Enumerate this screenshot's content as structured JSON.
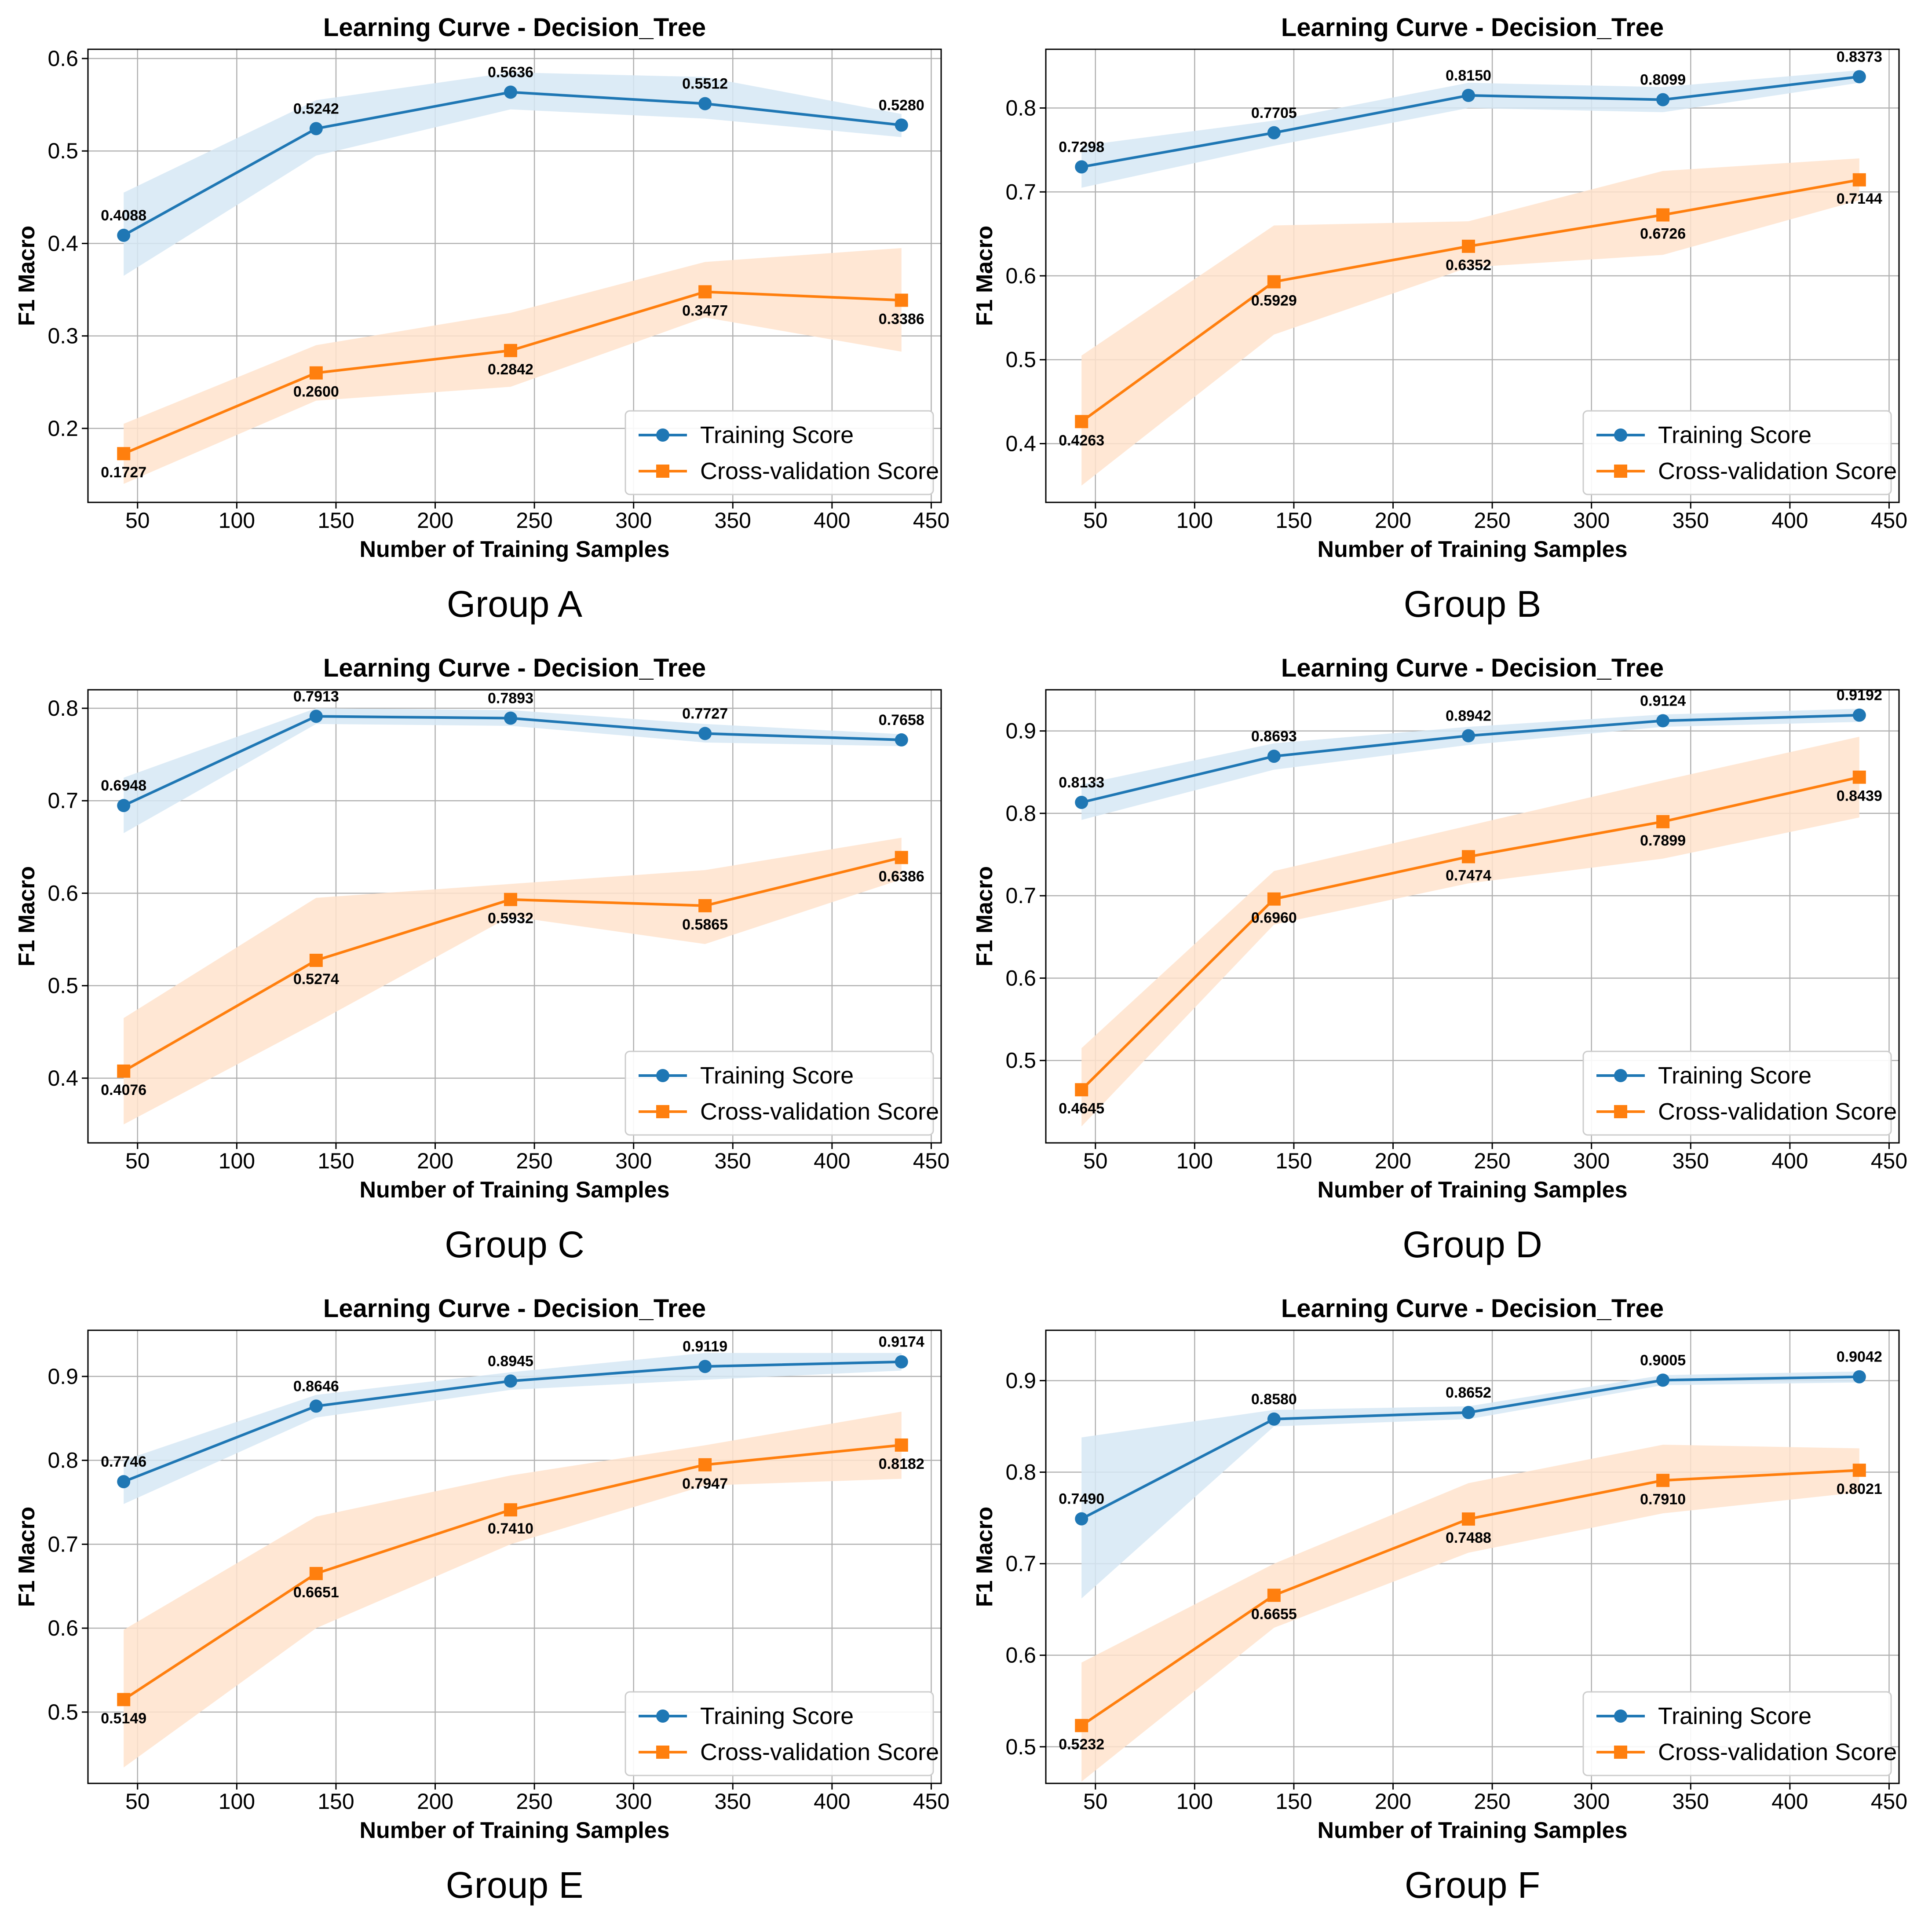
{
  "figure": {
    "panel_count": 6
  },
  "style": {
    "training_color": "#1f77b4",
    "training_band_color": "#d6e7f5",
    "cv_color": "#ff7f0e",
    "cv_band_color": "#ffe3cc",
    "grid_color": "#b0b0b0",
    "text_color": "#000000"
  },
  "chart_data": [
    {
      "type": "line",
      "group_label": "Group A",
      "title": "Learning Curve - Decision_Tree",
      "xlabel": "Number of Training Samples",
      "ylabel": "F1 Macro",
      "x": [
        43,
        140,
        238,
        336,
        435
      ],
      "xlim": [
        25,
        455
      ],
      "ylim": [
        0.12,
        0.61
      ],
      "xticks": [
        50,
        100,
        150,
        200,
        250,
        300,
        350,
        400,
        450
      ],
      "yticks": [
        0.2,
        0.3,
        0.4,
        0.5,
        0.6
      ],
      "grid": true,
      "legend_position": "lower-right",
      "series": [
        {
          "name": "Training Score",
          "marker": "circle",
          "values": [
            0.4088,
            0.5242,
            0.5636,
            0.5512,
            0.528
          ],
          "labels": [
            "0.4088",
            "0.5242",
            "0.5636",
            "0.5512",
            "0.5280"
          ],
          "band_upper": [
            0.455,
            0.555,
            0.585,
            0.58,
            0.54
          ],
          "band_lower": [
            0.365,
            0.495,
            0.545,
            0.535,
            0.515
          ]
        },
        {
          "name": "Cross-validation Score",
          "marker": "square",
          "values": [
            0.1727,
            0.26,
            0.2842,
            0.3477,
            0.3386
          ],
          "labels": [
            "0.1727",
            "0.2600",
            "0.2842",
            "0.3477",
            "0.3386"
          ],
          "band_upper": [
            0.205,
            0.29,
            0.325,
            0.38,
            0.395
          ],
          "band_lower": [
            0.14,
            0.23,
            0.245,
            0.32,
            0.283
          ]
        }
      ]
    },
    {
      "type": "line",
      "group_label": "Group B",
      "title": "Learning Curve - Decision_Tree",
      "xlabel": "Number of Training Samples",
      "ylabel": "F1 Macro",
      "x": [
        43,
        140,
        238,
        336,
        435
      ],
      "xlim": [
        25,
        455
      ],
      "ylim": [
        0.33,
        0.87
      ],
      "xticks": [
        50,
        100,
        150,
        200,
        250,
        300,
        350,
        400,
        450
      ],
      "yticks": [
        0.4,
        0.5,
        0.6,
        0.7,
        0.8
      ],
      "grid": true,
      "legend_position": "lower-right",
      "series": [
        {
          "name": "Training Score",
          "marker": "circle",
          "values": [
            0.7298,
            0.7705,
            0.815,
            0.8099,
            0.8373
          ],
          "labels": [
            "0.7298",
            "0.7705",
            "0.8150",
            "0.8099",
            "0.8373"
          ],
          "band_upper": [
            0.755,
            0.785,
            0.83,
            0.825,
            0.845
          ],
          "band_lower": [
            0.705,
            0.755,
            0.8,
            0.795,
            0.83
          ]
        },
        {
          "name": "Cross-validation Score",
          "marker": "square",
          "values": [
            0.4263,
            0.5929,
            0.6352,
            0.6726,
            0.7144
          ],
          "labels": [
            "0.4263",
            "0.5929",
            "0.6352",
            "0.6726",
            "0.7144"
          ],
          "band_upper": [
            0.505,
            0.66,
            0.665,
            0.725,
            0.74
          ],
          "band_lower": [
            0.35,
            0.53,
            0.61,
            0.625,
            0.69
          ]
        }
      ]
    },
    {
      "type": "line",
      "group_label": "Group C",
      "title": "Learning Curve - Decision_Tree",
      "xlabel": "Number of Training Samples",
      "ylabel": "F1 Macro",
      "x": [
        43,
        140,
        238,
        336,
        435
      ],
      "xlim": [
        25,
        455
      ],
      "ylim": [
        0.33,
        0.82
      ],
      "xticks": [
        50,
        100,
        150,
        200,
        250,
        300,
        350,
        400,
        450
      ],
      "yticks": [
        0.4,
        0.5,
        0.6,
        0.7,
        0.8
      ],
      "grid": true,
      "legend_position": "lower-right",
      "series": [
        {
          "name": "Training Score",
          "marker": "circle",
          "values": [
            0.6948,
            0.7913,
            0.7893,
            0.7727,
            0.7658
          ],
          "labels": [
            "0.6948",
            "0.7913",
            "0.7893",
            "0.7727",
            "0.7658"
          ],
          "band_upper": [
            0.725,
            0.8,
            0.798,
            0.783,
            0.772
          ],
          "band_lower": [
            0.665,
            0.783,
            0.781,
            0.763,
            0.759
          ]
        },
        {
          "name": "Cross-validation Score",
          "marker": "square",
          "values": [
            0.4076,
            0.5274,
            0.5932,
            0.5865,
            0.6386
          ],
          "labels": [
            "0.4076",
            "0.5274",
            "0.5932",
            "0.5865",
            "0.6386"
          ],
          "band_upper": [
            0.465,
            0.595,
            0.61,
            0.625,
            0.66
          ],
          "band_lower": [
            0.35,
            0.46,
            0.575,
            0.545,
            0.615
          ]
        }
      ]
    },
    {
      "type": "line",
      "group_label": "Group D",
      "title": "Learning Curve - Decision_Tree",
      "xlabel": "Number of Training Samples",
      "ylabel": "F1 Macro",
      "x": [
        43,
        140,
        238,
        336,
        435
      ],
      "xlim": [
        25,
        455
      ],
      "ylim": [
        0.4,
        0.95
      ],
      "xticks": [
        50,
        100,
        150,
        200,
        250,
        300,
        350,
        400,
        450
      ],
      "yticks": [
        0.5,
        0.6,
        0.7,
        0.8,
        0.9
      ],
      "grid": true,
      "legend_position": "lower-right",
      "series": [
        {
          "name": "Training Score",
          "marker": "circle",
          "values": [
            0.8133,
            0.8693,
            0.8942,
            0.9124,
            0.9192
          ],
          "labels": [
            "0.8133",
            "0.8693",
            "0.8942",
            "0.9124",
            "0.9192"
          ],
          "band_upper": [
            0.835,
            0.885,
            0.905,
            0.92,
            0.927
          ],
          "band_lower": [
            0.792,
            0.853,
            0.883,
            0.905,
            0.911
          ]
        },
        {
          "name": "Cross-validation Score",
          "marker": "square",
          "values": [
            0.4645,
            0.696,
            0.7474,
            0.7899,
            0.8439
          ],
          "labels": [
            "0.4645",
            "0.6960",
            "0.7474",
            "0.7899",
            "0.8439"
          ],
          "band_upper": [
            0.515,
            0.73,
            0.785,
            0.84,
            0.893
          ],
          "band_lower": [
            0.42,
            0.665,
            0.715,
            0.745,
            0.795
          ]
        }
      ]
    },
    {
      "type": "line",
      "group_label": "Group E",
      "title": "Learning Curve - Decision_Tree",
      "xlabel": "Number of Training Samples",
      "ylabel": "F1 Macro",
      "x": [
        43,
        140,
        238,
        336,
        435
      ],
      "xlim": [
        25,
        455
      ],
      "ylim": [
        0.415,
        0.955
      ],
      "xticks": [
        50,
        100,
        150,
        200,
        250,
        300,
        350,
        400,
        450
      ],
      "yticks": [
        0.5,
        0.6,
        0.7,
        0.8,
        0.9
      ],
      "grid": true,
      "legend_position": "lower-right",
      "series": [
        {
          "name": "Training Score",
          "marker": "circle",
          "values": [
            0.7746,
            0.8646,
            0.8945,
            0.9119,
            0.9174
          ],
          "labels": [
            "0.7746",
            "0.8646",
            "0.8945",
            "0.9119",
            "0.9174"
          ],
          "band_upper": [
            0.8,
            0.878,
            0.905,
            0.928,
            0.928
          ],
          "band_lower": [
            0.748,
            0.851,
            0.884,
            0.896,
            0.907
          ]
        },
        {
          "name": "Cross-validation Score",
          "marker": "square",
          "values": [
            0.5149,
            0.6651,
            0.741,
            0.7947,
            0.8182
          ],
          "labels": [
            "0.5149",
            "0.6651",
            "0.7410",
            "0.7947",
            "0.8182"
          ],
          "band_upper": [
            0.598,
            0.733,
            0.782,
            0.818,
            0.858
          ],
          "band_lower": [
            0.434,
            0.6,
            0.7,
            0.77,
            0.778
          ]
        }
      ]
    },
    {
      "type": "line",
      "group_label": "Group F",
      "title": "Learning Curve - Decision_Tree",
      "xlabel": "Number of Training Samples",
      "ylabel": "F1 Macro",
      "x": [
        43,
        140,
        238,
        336,
        435
      ],
      "xlim": [
        25,
        455
      ],
      "ylim": [
        0.46,
        0.955
      ],
      "xticks": [
        50,
        100,
        150,
        200,
        250,
        300,
        350,
        400,
        450
      ],
      "yticks": [
        0.5,
        0.6,
        0.7,
        0.8,
        0.9
      ],
      "grid": true,
      "legend_position": "lower-right",
      "series": [
        {
          "name": "Training Score",
          "marker": "circle",
          "values": [
            0.749,
            0.858,
            0.8652,
            0.9005,
            0.9042
          ],
          "labels": [
            "0.7490",
            "0.8580",
            "0.8652",
            "0.9005",
            "0.9042"
          ],
          "band_upper": [
            0.838,
            0.868,
            0.872,
            0.906,
            0.91
          ],
          "band_lower": [
            0.662,
            0.85,
            0.858,
            0.895,
            0.898
          ]
        },
        {
          "name": "Cross-validation Score",
          "marker": "square",
          "values": [
            0.5232,
            0.6655,
            0.7488,
            0.791,
            0.8021
          ],
          "labels": [
            "0.5232",
            "0.6655",
            "0.7488",
            "0.7910",
            "0.8021"
          ],
          "band_upper": [
            0.592,
            0.7,
            0.788,
            0.83,
            0.826
          ],
          "band_lower": [
            0.462,
            0.63,
            0.712,
            0.755,
            0.778
          ]
        }
      ]
    }
  ]
}
